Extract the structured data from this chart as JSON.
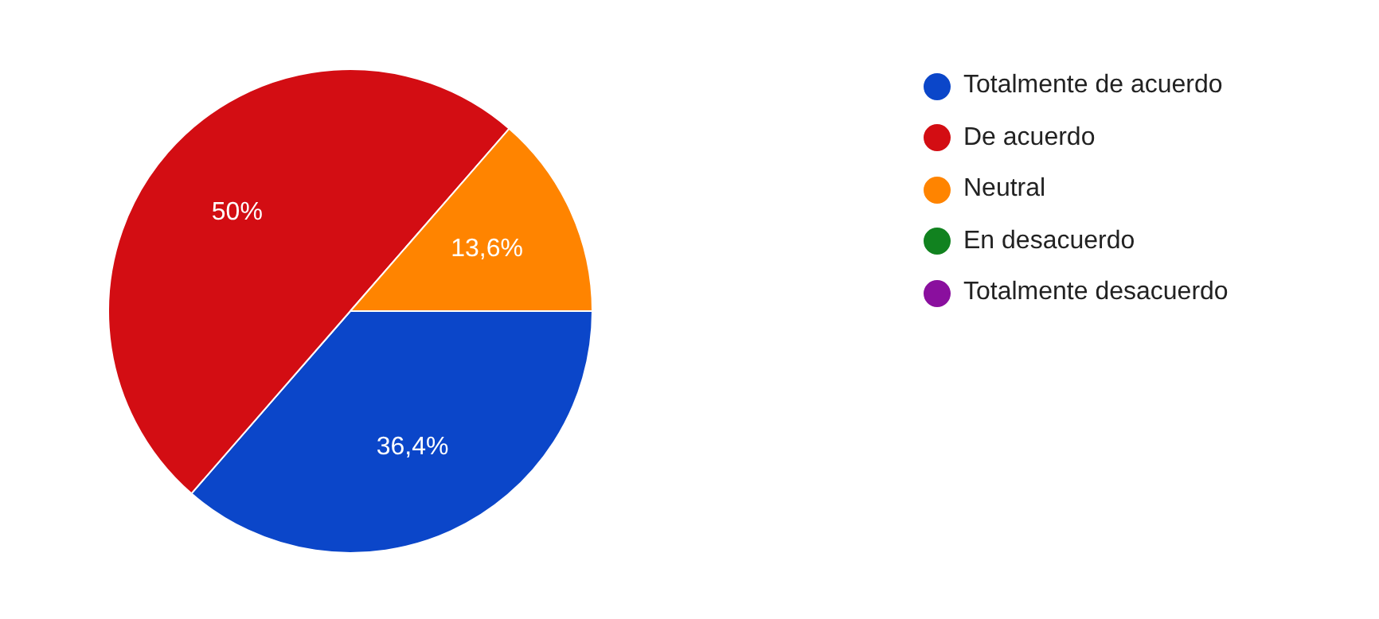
{
  "chart_data": {
    "type": "pie",
    "categories": [
      "Totalmente de acuerdo",
      "De acuerdo",
      "Neutral",
      "En desacuerdo",
      "Totalmente desacuerdo"
    ],
    "values": [
      36.4,
      50,
      13.6,
      0,
      0
    ],
    "colors": [
      "#0b46c9",
      "#d30d13",
      "#ff8400",
      "#11821f",
      "#8a0f9e"
    ],
    "value_labels": [
      "36,4%",
      "50%",
      "13,6%",
      null,
      null
    ],
    "legend": "right"
  }
}
